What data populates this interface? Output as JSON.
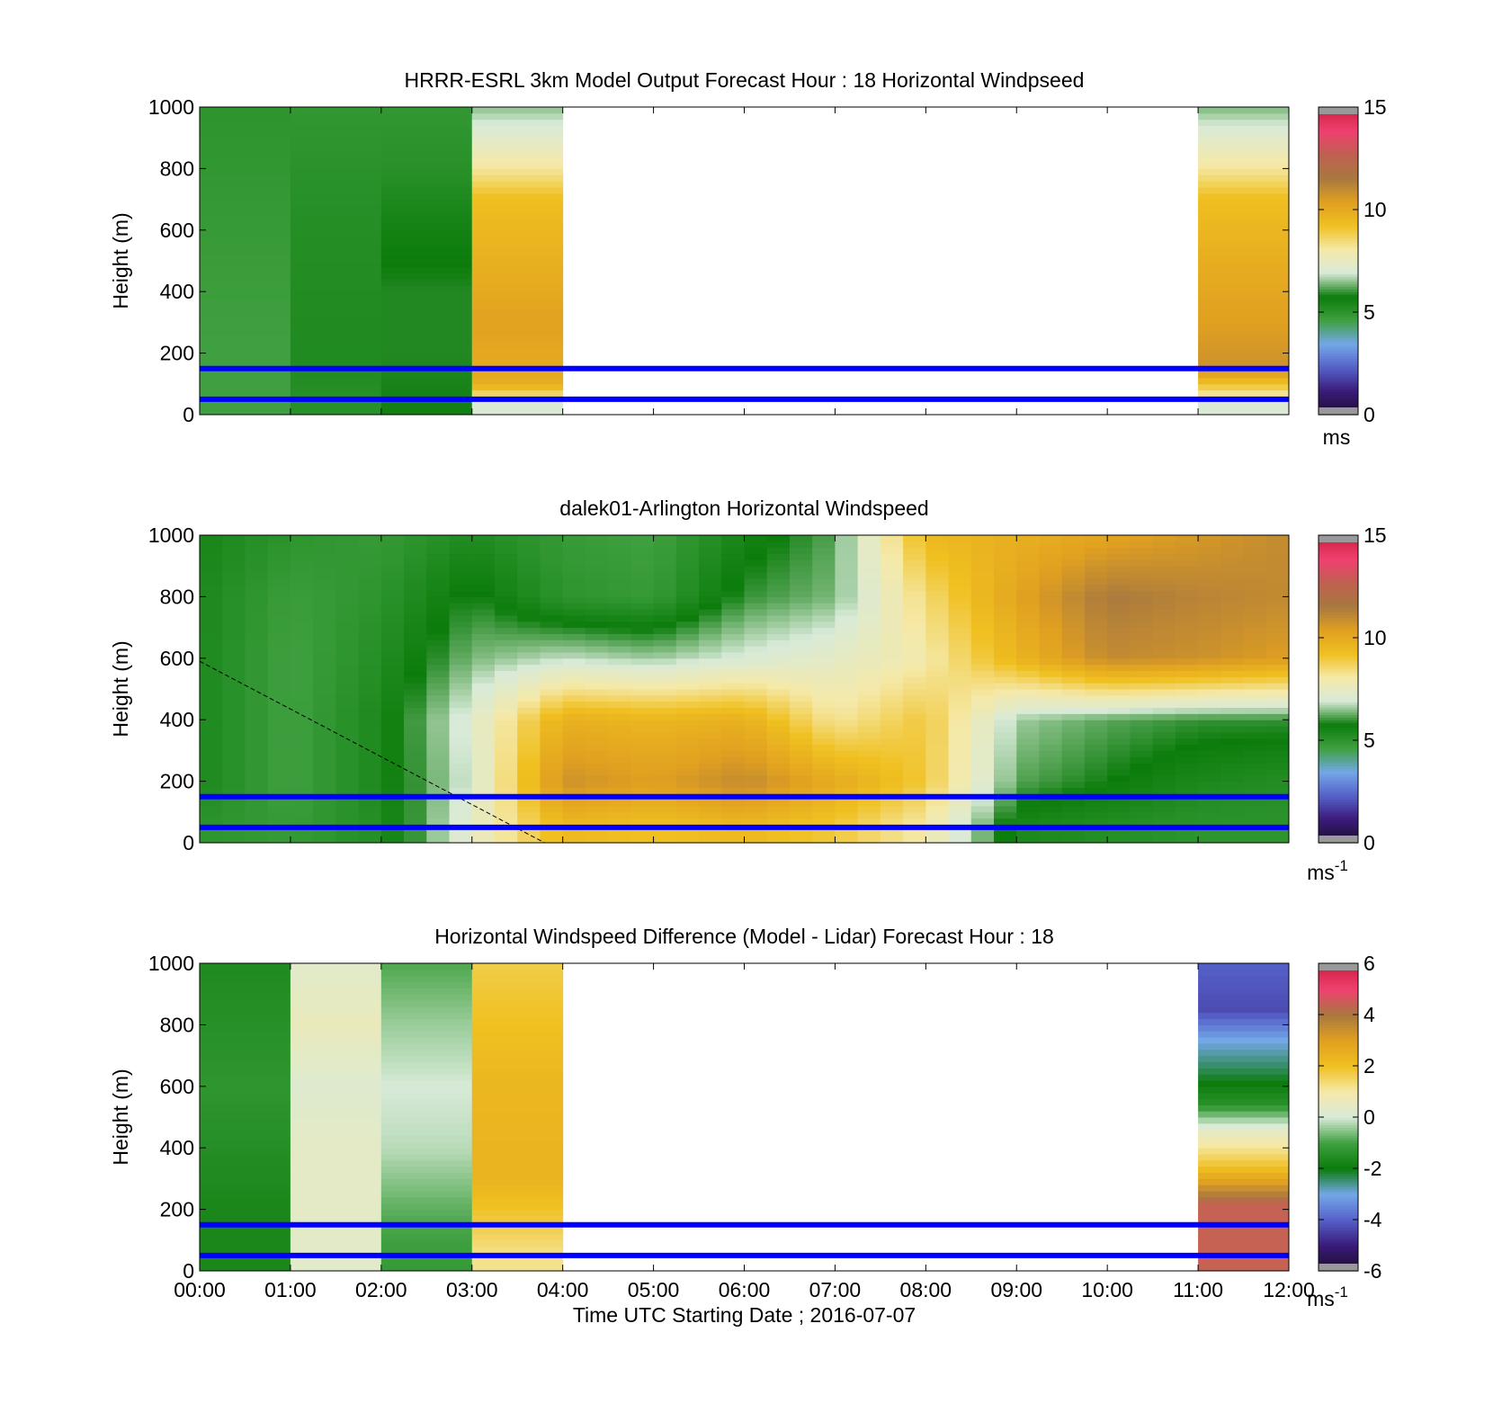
{
  "figure": {
    "xlabel": "Time UTC  Starting Date ; 2016-07-07",
    "time_ticks": [
      "00:00",
      "01:00",
      "02:00",
      "03:00",
      "04:00",
      "05:00",
      "06:00",
      "07:00",
      "08:00",
      "09:00",
      "10:00",
      "11:00",
      "12:00"
    ]
  },
  "colors": {
    "reference_lines": "#0000ff",
    "windspeed_colormap": [
      "#1a0f2e",
      "#3b1a7a",
      "#5561c9",
      "#74a7e8",
      "#3fa03f",
      "#0b7c0b",
      "#d8ead8",
      "#f5e9a8",
      "#f0c020",
      "#e0a020",
      "#a87840",
      "#c06050",
      "#f04070",
      "#cc2040"
    ],
    "difference_colormap": [
      "#1a0f2e",
      "#3b1a7a",
      "#5561c9",
      "#74a7e8",
      "#0b7c0b",
      "#3fa03f",
      "#d8ead8",
      "#f5e9a8",
      "#f0c020",
      "#e0a020",
      "#a87840",
      "#f04070",
      "#cc2040"
    ]
  },
  "chart_data": [
    {
      "type": "heatmap",
      "title": "HRRR-ESRL 3km Model Output   Forecast Hour : 18 Horizontal Windpseed",
      "ylabel": "Height (m)",
      "ylim": [
        0,
        1000
      ],
      "y_ticks": [
        "0",
        "200",
        "400",
        "600",
        "800",
        "1000"
      ],
      "xlim_hours": [
        0,
        12
      ],
      "colorbar": {
        "range": [
          0,
          15
        ],
        "ticks": [
          "0",
          "5",
          "10",
          "15"
        ],
        "unit": "ms"
      },
      "reference_lines_m": [
        50,
        150
      ],
      "columns": [
        {
          "start_hour": 0,
          "end_hour": 1,
          "speed_ms_by_height": [
            [
              1000,
              5.0
            ],
            [
              600,
              4.8
            ],
            [
              200,
              4.6
            ],
            [
              0,
              4.6
            ]
          ]
        },
        {
          "start_hour": 1,
          "end_hour": 2,
          "speed_ms_by_height": [
            [
              1000,
              4.9
            ],
            [
              600,
              5.2
            ],
            [
              200,
              5.3
            ],
            [
              0,
              5.1
            ]
          ]
        },
        {
          "start_hour": 2,
          "end_hour": 3,
          "speed_ms_by_height": [
            [
              1000,
              4.9
            ],
            [
              800,
              5.1
            ],
            [
              600,
              5.6
            ],
            [
              400,
              5.9
            ],
            [
              200,
              5.9
            ],
            [
              0,
              5.8
            ]
          ]
        },
        {
          "start_hour": 3,
          "end_hour": 4,
          "speed_ms_by_height": [
            [
              1000,
              6.5
            ],
            [
              900,
              7.3
            ],
            [
              800,
              8.2
            ],
            [
              700,
              9.3
            ],
            [
              500,
              9.8
            ],
            [
              300,
              10.3
            ],
            [
              100,
              9.9
            ],
            [
              30,
              7.0
            ]
          ]
        },
        {
          "start_hour": 11,
          "end_hour": 12,
          "speed_ms_by_height": [
            [
              1000,
              6.4
            ],
            [
              900,
              7.3
            ],
            [
              800,
              8.2
            ],
            [
              700,
              9.3
            ],
            [
              500,
              9.9
            ],
            [
              300,
              10.4
            ],
            [
              150,
              10.8
            ],
            [
              30,
              7.0
            ]
          ]
        }
      ]
    },
    {
      "type": "heatmap",
      "title": "dalek01-Arlington  Horizontal Windspeed",
      "ylabel": "Height (m)",
      "ylim": [
        0,
        1000
      ],
      "y_ticks": [
        "0",
        "200",
        "400",
        "600",
        "800",
        "1000"
      ],
      "xlim_hours": [
        0,
        12
      ],
      "colorbar": {
        "range": [
          0,
          15
        ],
        "ticks": [
          "0",
          "5",
          "10",
          "15"
        ],
        "unit": "ms",
        "unit_exp": "-1"
      },
      "reference_lines_m": [
        50,
        150
      ],
      "boundary_line": {
        "from": [
          0,
          590
        ],
        "to": [
          3.8,
          0
        ]
      },
      "time_nodes_hours": [
        0,
        1,
        2,
        3,
        4,
        5,
        6,
        7,
        8,
        9,
        10,
        11,
        12
      ],
      "speed_ms_at_heights": [
        {
          "height_m": 1000,
          "values": [
            5.5,
            5.0,
            4.8,
            5.3,
            4.8,
            4.6,
            5.5,
            6.2,
            9.5,
            9.8,
            10.2,
            10.6,
            11.0
          ]
        },
        {
          "height_m": 800,
          "values": [
            5.4,
            4.7,
            5.0,
            5.9,
            5.0,
            4.8,
            6.0,
            6.4,
            8.5,
            10.2,
            11.5,
            11.2,
            11.0
          ]
        },
        {
          "height_m": 600,
          "values": [
            5.4,
            4.6,
            5.2,
            6.4,
            6.8,
            6.6,
            7.0,
            7.4,
            8.0,
            9.6,
            11.0,
            10.8,
            10.4
          ]
        },
        {
          "height_m": 400,
          "values": [
            5.4,
            4.6,
            5.4,
            7.2,
            9.8,
            9.6,
            9.8,
            8.2,
            9.0,
            6.6,
            6.2,
            6.0,
            6.0
          ]
        },
        {
          "height_m": 200,
          "values": [
            5.4,
            4.6,
            5.4,
            7.0,
            10.8,
            10.4,
            11.0,
            10.0,
            9.0,
            6.2,
            5.8,
            5.4,
            5.2
          ]
        },
        {
          "height_m": 50,
          "values": [
            5.0,
            4.8,
            5.2,
            7.4,
            9.5,
            9.2,
            9.5,
            9.0,
            8.0,
            5.4,
            5.2,
            5.0,
            5.0
          ]
        }
      ]
    },
    {
      "type": "heatmap",
      "title": "Horizontal Windspeed Difference (Model - Lidar) Forecast Hour : 18",
      "ylabel": "Height (m)",
      "ylim": [
        0,
        1000
      ],
      "y_ticks": [
        "0",
        "200",
        "400",
        "600",
        "800",
        "1000"
      ],
      "xlim_hours": [
        0,
        12
      ],
      "colorbar": {
        "range": [
          -6,
          6
        ],
        "ticks": [
          "-6",
          "-4",
          "-2",
          "0",
          "2",
          "4",
          "6"
        ],
        "unit": "ms",
        "unit_exp": "-1"
      },
      "reference_lines_m": [
        50,
        150
      ],
      "columns": [
        {
          "start_hour": 0,
          "end_hour": 1,
          "diff_ms_by_height": [
            [
              1000,
              -1.6
            ],
            [
              600,
              -1.3
            ],
            [
              200,
              -1.7
            ],
            [
              0,
              -1.7
            ]
          ]
        },
        {
          "start_hour": 1,
          "end_hour": 2,
          "diff_ms_by_height": [
            [
              1000,
              0.3
            ],
            [
              800,
              0.6
            ],
            [
              600,
              0.2
            ],
            [
              400,
              0.4
            ],
            [
              200,
              0.4
            ],
            [
              0,
              0.3
            ]
          ]
        },
        {
          "start_hour": 2,
          "end_hour": 3,
          "diff_ms_by_height": [
            [
              1000,
              -0.9
            ],
            [
              800,
              -0.4
            ],
            [
              600,
              0.0
            ],
            [
              400,
              -0.2
            ],
            [
              200,
              -0.8
            ],
            [
              0,
              -1.2
            ]
          ]
        },
        {
          "start_hour": 3,
          "end_hour": 4,
          "diff_ms_by_height": [
            [
              1000,
              1.7
            ],
            [
              800,
              2.0
            ],
            [
              600,
              2.3
            ],
            [
              300,
              2.4
            ],
            [
              150,
              1.7
            ],
            [
              50,
              1.2
            ]
          ]
        },
        {
          "start_hour": 11,
          "end_hour": 12,
          "diff_ms_by_height": [
            [
              1000,
              -4.0
            ],
            [
              850,
              -4.3
            ],
            [
              750,
              -3.0
            ],
            [
              650,
              -2.3
            ],
            [
              550,
              -1.5
            ],
            [
              450,
              0.5
            ],
            [
              350,
              1.8
            ],
            [
              300,
              2.8
            ],
            [
              220,
              4.4
            ],
            [
              50,
              4.4
            ]
          ]
        }
      ]
    }
  ]
}
